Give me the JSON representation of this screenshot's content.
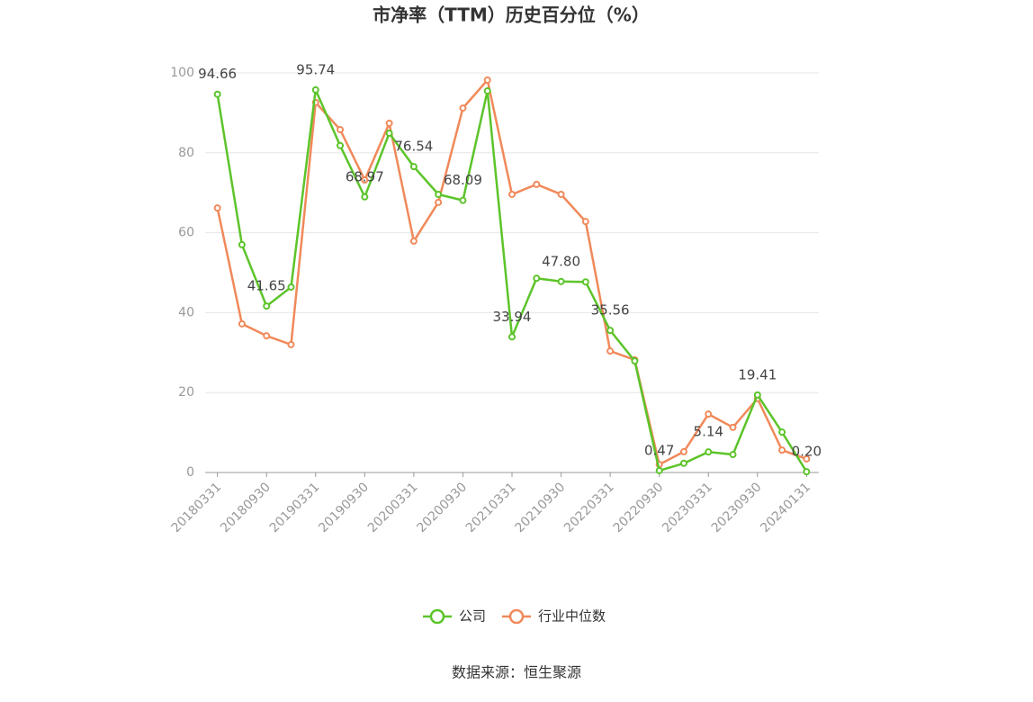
{
  "chart_data": {
    "type": "line",
    "title": "市净率（TTM）历史百分位（%）",
    "source": "数据来源：恒生聚源",
    "categories": [
      "20180331",
      null,
      "20180930",
      null,
      "20190331",
      null,
      "20190930",
      null,
      "20200331",
      null,
      "20200930",
      null,
      "20210331",
      null,
      "20210930",
      null,
      "20220331",
      null,
      "20220930",
      null,
      "20230331",
      null,
      "20230930",
      null,
      "20240131"
    ],
    "series": [
      {
        "name": "公司",
        "color": "#5cc42a",
        "values": [
          94.66,
          57.0,
          41.65,
          46.4,
          95.74,
          81.8,
          68.97,
          84.9,
          76.54,
          69.6,
          68.09,
          95.5,
          33.94,
          48.6,
          47.8,
          47.7,
          35.56,
          27.9,
          0.47,
          2.3,
          5.14,
          4.5,
          19.41,
          10.1,
          0.2
        ],
        "value_labels": [
          "94.66",
          null,
          "41.65",
          null,
          "95.74",
          null,
          "68.97",
          null,
          "76.54",
          null,
          "68.09",
          null,
          "33.94",
          null,
          "47.80",
          null,
          "35.56",
          null,
          "0.47",
          null,
          "5.14",
          null,
          "19.41",
          null,
          "0.20"
        ]
      },
      {
        "name": "行业中位数",
        "color": "#f0895a",
        "values": [
          66.2,
          37.2,
          34.2,
          32.0,
          92.6,
          85.8,
          73.2,
          87.4,
          57.9,
          67.6,
          91.2,
          98.2,
          69.6,
          72.1,
          69.6,
          62.8,
          30.4,
          28.2,
          2.0,
          5.2,
          14.6,
          11.3,
          18.5,
          5.6,
          3.4
        ]
      }
    ],
    "ylim": [
      0,
      100
    ],
    "yticks": [
      0,
      20,
      40,
      60,
      80,
      100
    ],
    "grid": true
  }
}
